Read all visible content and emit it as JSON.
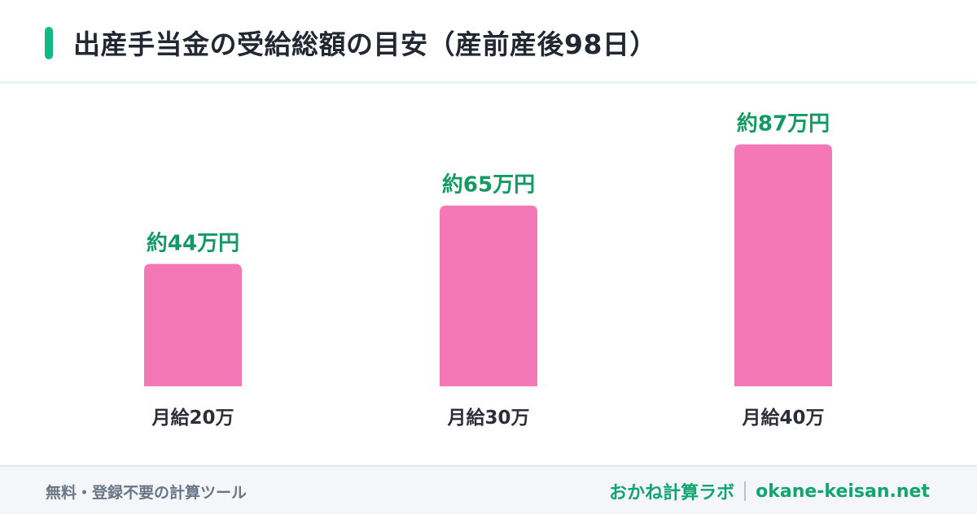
{
  "header": {
    "title": "出産手当金の受給総額の目安（産前産後98日）"
  },
  "chart_data": {
    "type": "bar",
    "categories": [
      "月給20万",
      "月給30万",
      "月給40万"
    ],
    "values": [
      44,
      65,
      87
    ],
    "data_labels": [
      "約44万円",
      "約65万円",
      "約87万円"
    ],
    "unit": "万円",
    "title": "出産手当金の受給総額の目安（産前産後98日）",
    "xlabel": "",
    "ylabel": "",
    "ylim": [
      0,
      100
    ],
    "grid": false,
    "legend": "none",
    "colors": {
      "bar": "#f477b6",
      "value_label": "#139a64",
      "category_label": "#2b2f38"
    }
  },
  "footer": {
    "tagline": "無料・登録不要の計算ツール",
    "brand_name": "おかね計算ラボ",
    "brand_url": "okane-keisan.net"
  },
  "colors": {
    "accent": "#12b886",
    "brand": "#12a56f"
  }
}
